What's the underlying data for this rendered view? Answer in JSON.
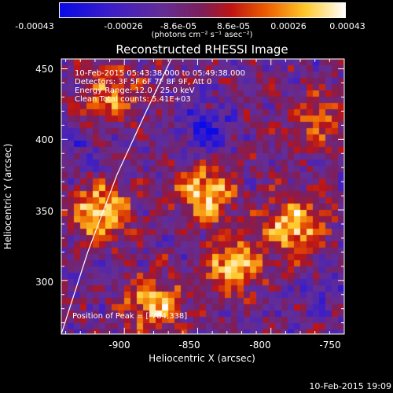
{
  "chart_data": {
    "type": "heatmap",
    "title": "Reconstructed RHESSI Image",
    "xlabel": "Heliocentric X (arcsec)",
    "ylabel": "Heliocentric Y (arcsec)",
    "xlim": [
      -943,
      -750
    ],
    "ylim": [
      262,
      457
    ],
    "xticks": [
      "-900",
      "-850",
      "-800",
      "-750"
    ],
    "yticks": [
      "300",
      "350",
      "400",
      "450"
    ],
    "colorbar": {
      "ticks": [
        "-0.00043",
        "-0.00026",
        "-8.6e-05",
        "8.6e-05",
        "0.00026",
        "0.00043"
      ],
      "units": "(photons cm⁻² s⁻¹ asec⁻²)",
      "range": [
        -0.00043,
        0.00043
      ],
      "colormap": "rhessi-blue-red-white"
    },
    "annotations": [
      "10-Feb-2015 05:43:38.000 to 05:49:38.000",
      "Detectors: 3F 5F 6F 7F 8F 9F, Att 0",
      "Energy Range: 12.0 - 25.0 keV",
      "Clean    Total counts: 5.41E+03",
      "Position of Peak = [-784,338]"
    ],
    "bright_sources": [
      {
        "x": -917,
        "y": 348,
        "intensity": 0.00043
      },
      {
        "x": -845,
        "y": 362,
        "intensity": 0.0004
      },
      {
        "x": -826,
        "y": 310,
        "intensity": 0.00038
      },
      {
        "x": -784,
        "y": 338,
        "intensity": 0.00043
      },
      {
        "x": -880,
        "y": 283,
        "intensity": 0.00036
      },
      {
        "x": -910,
        "y": 430,
        "intensity": 0.00028
      },
      {
        "x": -770,
        "y": 415,
        "intensity": 0.00022
      }
    ],
    "dim_regions": [
      {
        "x": -845,
        "y": 405,
        "intensity": -0.00026
      },
      {
        "x": -930,
        "y": 392,
        "intensity": -0.00012
      },
      {
        "x": -765,
        "y": 290,
        "intensity": -0.0001
      }
    ],
    "limb_curve": [
      [
        -943,
        262
      ],
      [
        -925,
        320
      ],
      [
        -905,
        375
      ],
      [
        -885,
        420
      ],
      [
        -868,
        457
      ]
    ]
  },
  "footer": {
    "timestamp": "10-Feb-2015 19:09"
  }
}
